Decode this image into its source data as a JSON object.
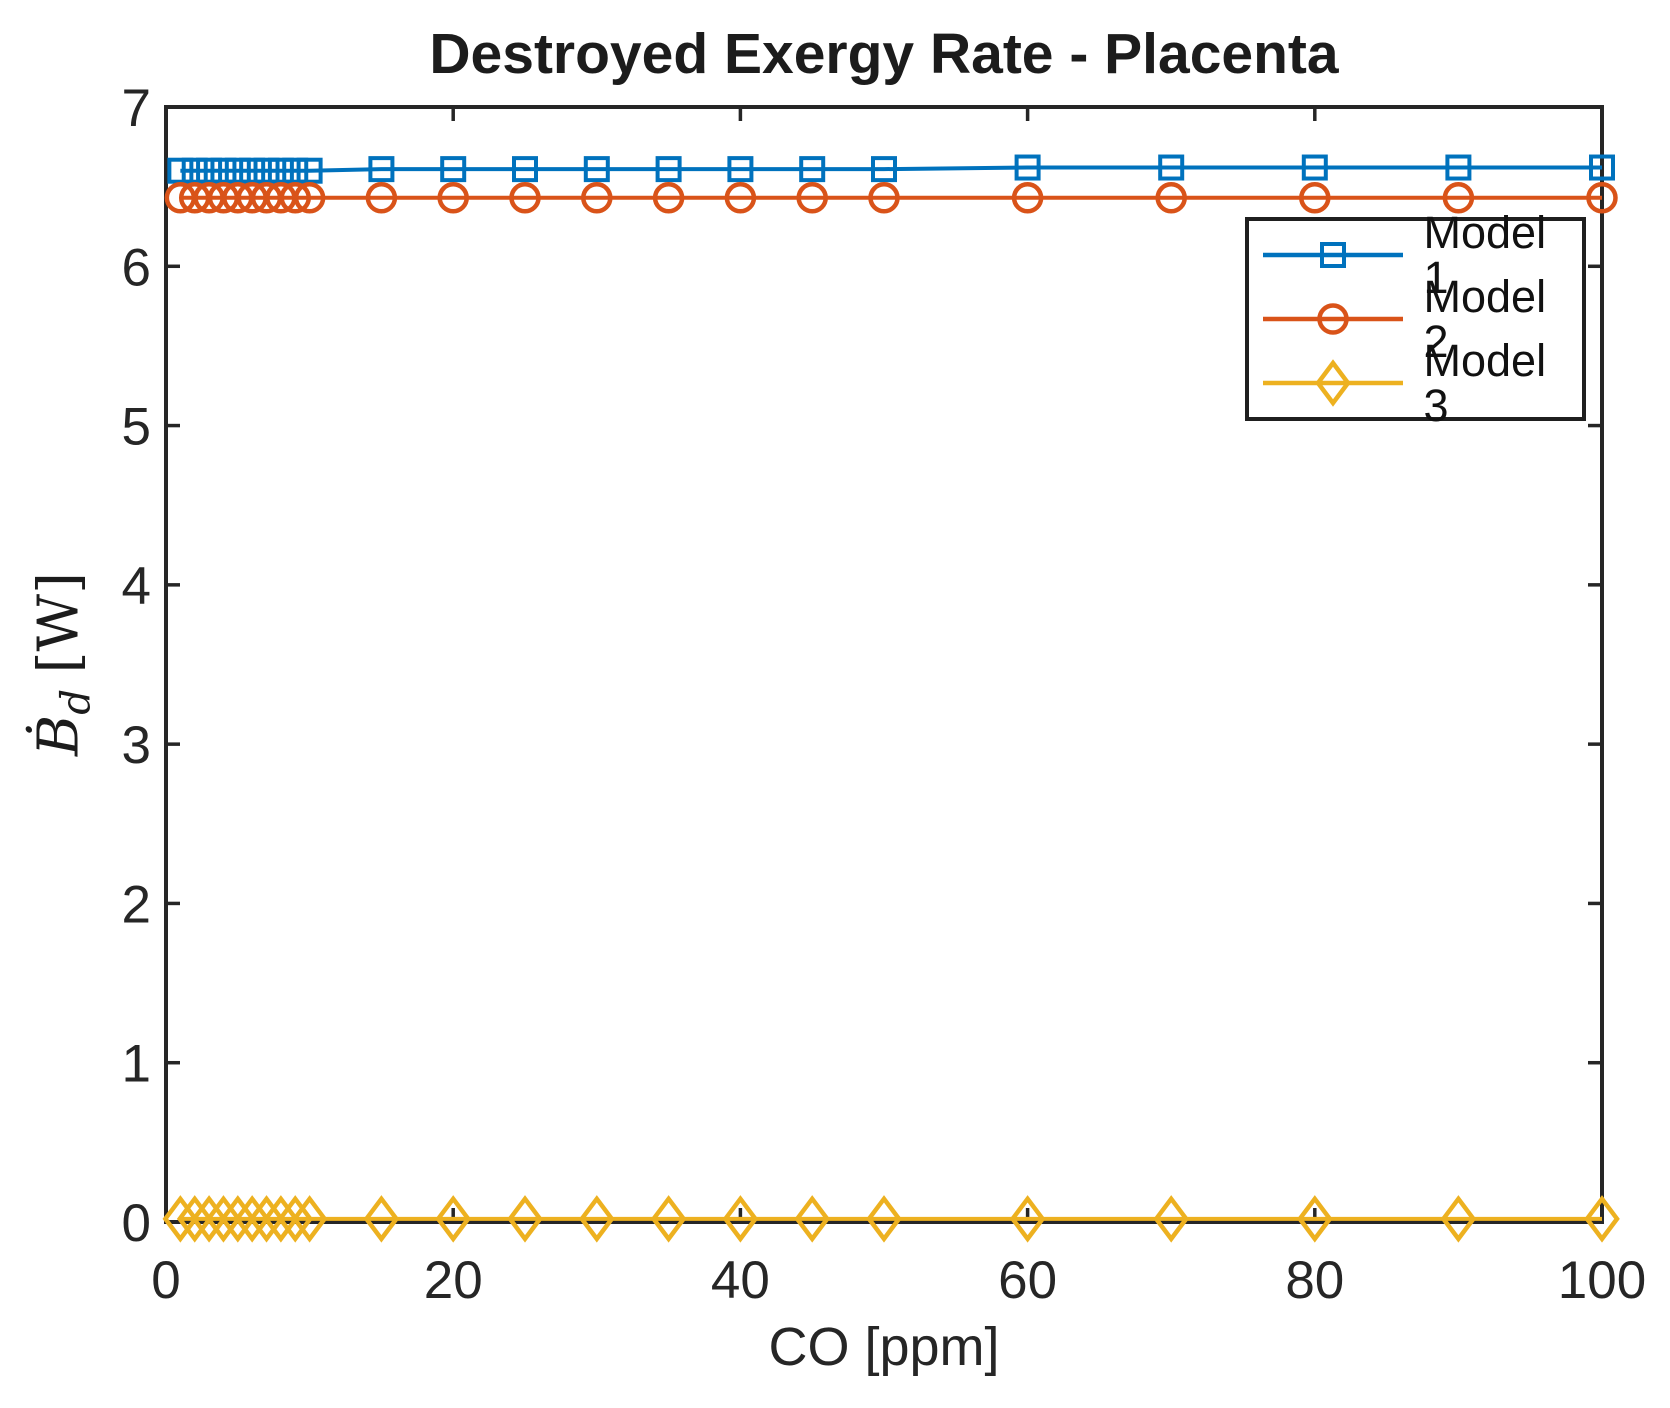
{
  "title": "Destroyed Exergy Rate - Placenta",
  "xlabel": "CO [ppm]",
  "ylabel": {
    "symbol": "Ḃ",
    "subscript": "d",
    "unit": "[W]"
  },
  "axis_color": "#262626",
  "background_color": "#ffffff",
  "legend": {
    "position": "upper right",
    "items": [
      {
        "label": "Model 1",
        "marker": "square",
        "color": "#0072BD"
      },
      {
        "label": "Model 2",
        "marker": "circle",
        "color": "#D95319"
      },
      {
        "label": "Model 3",
        "marker": "diamond",
        "color": "#EDB120"
      }
    ]
  },
  "chart_data": {
    "type": "line",
    "title": "Destroyed Exergy Rate - Placenta",
    "xlabel": "CO [ppm]",
    "ylabel": "Ḃd [W]",
    "xlim": [
      0,
      100
    ],
    "ylim": [
      0,
      7
    ],
    "x_ticks": [
      0,
      20,
      40,
      60,
      80,
      100
    ],
    "y_ticks": [
      0,
      1,
      2,
      3,
      4,
      5,
      6,
      7
    ],
    "grid": false,
    "legend_position": "upper right",
    "x": [
      1,
      2,
      3,
      4,
      5,
      6,
      7,
      8,
      9,
      10,
      15,
      20,
      25,
      30,
      35,
      40,
      45,
      50,
      60,
      70,
      80,
      90,
      100
    ],
    "series": [
      {
        "name": "Model 1",
        "color": "#0072BD",
        "marker": "square",
        "values": [
          6.6,
          6.6,
          6.6,
          6.6,
          6.6,
          6.6,
          6.6,
          6.6,
          6.6,
          6.6,
          6.61,
          6.61,
          6.61,
          6.61,
          6.61,
          6.61,
          6.61,
          6.61,
          6.62,
          6.62,
          6.62,
          6.62,
          6.62
        ]
      },
      {
        "name": "Model 2",
        "color": "#D95319",
        "marker": "circle",
        "values": [
          6.43,
          6.43,
          6.43,
          6.43,
          6.43,
          6.43,
          6.43,
          6.43,
          6.43,
          6.43,
          6.43,
          6.43,
          6.43,
          6.43,
          6.43,
          6.43,
          6.43,
          6.43,
          6.43,
          6.43,
          6.43,
          6.43,
          6.43
        ]
      },
      {
        "name": "Model 3",
        "color": "#EDB120",
        "marker": "diamond",
        "values": [
          0.02,
          0.02,
          0.02,
          0.02,
          0.02,
          0.02,
          0.02,
          0.02,
          0.02,
          0.02,
          0.02,
          0.02,
          0.02,
          0.02,
          0.02,
          0.02,
          0.02,
          0.02,
          0.02,
          0.02,
          0.02,
          0.02,
          0.02
        ]
      }
    ]
  }
}
